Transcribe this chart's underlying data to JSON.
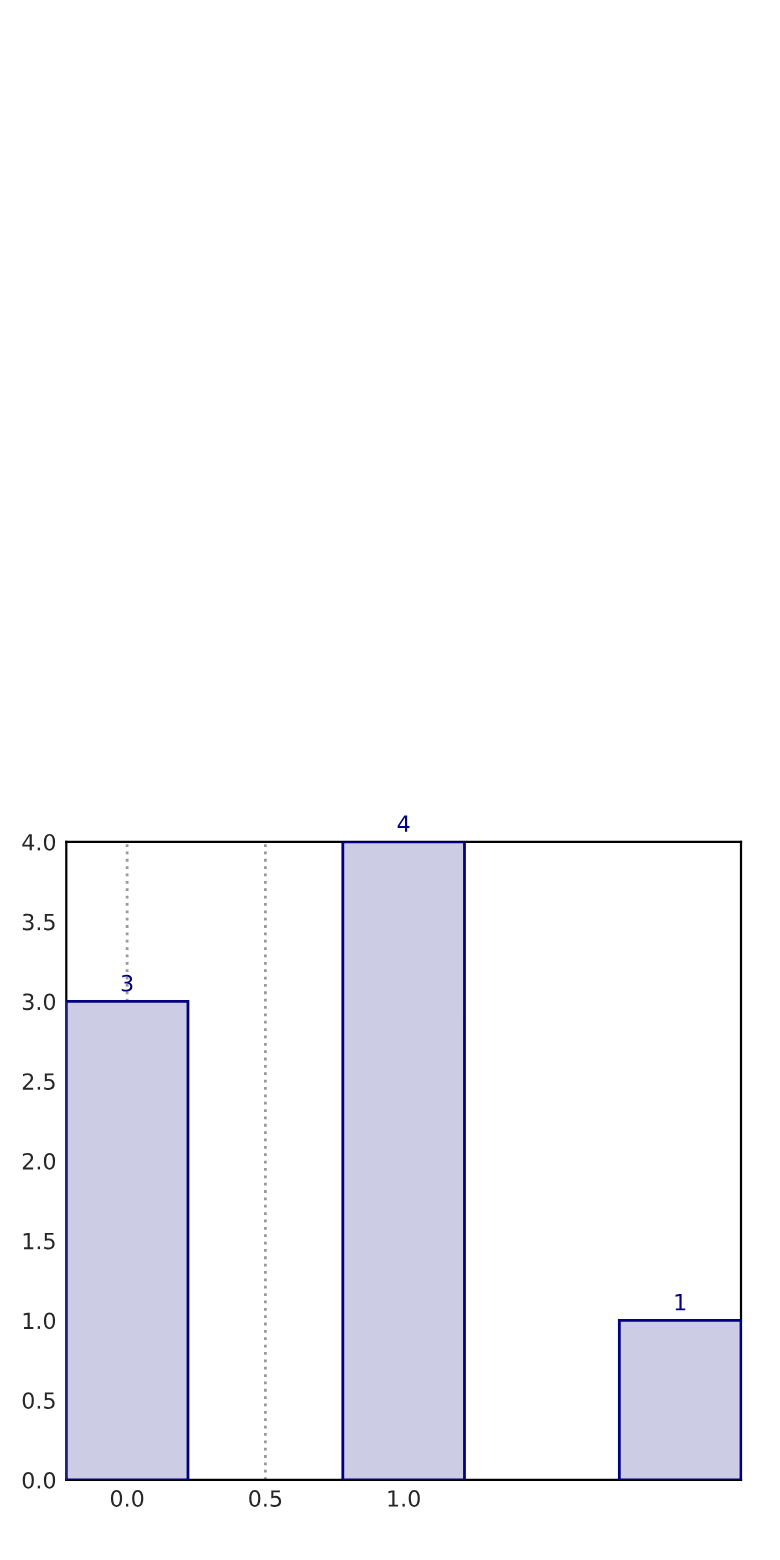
{
  "chart_data": {
    "type": "bar",
    "x": [
      0,
      1,
      2
    ],
    "values": [
      3,
      4,
      1
    ],
    "color": "#cccce5",
    "xlim": [
      -0.22,
      2.22
    ],
    "xticks": [
      {
        "value": 0,
        "label": "0.0"
      },
      {
        "value": 0.5,
        "label": "0.5"
      },
      {
        "value": 1,
        "label": "1.0"
      }
    ],
    "ylim": [
      0,
      4
    ],
    "yticks": [
      {
        "value": 0,
        "label": "0.0"
      },
      {
        "value": 0.5,
        "label": "0.5"
      },
      {
        "value": 1,
        "label": "1.0"
      },
      {
        "value": 1.5,
        "label": "1.5"
      },
      {
        "value": 2,
        "label": "2.0"
      },
      {
        "value": 2.5,
        "label": "2.5"
      },
      {
        "value": 3,
        "label": "3.0"
      },
      {
        "value": 3.5,
        "label": "3.5"
      },
      {
        "value": 4,
        "label": "4.0"
      }
    ],
    "grid": "x",
    "data_labels": true
  }
}
